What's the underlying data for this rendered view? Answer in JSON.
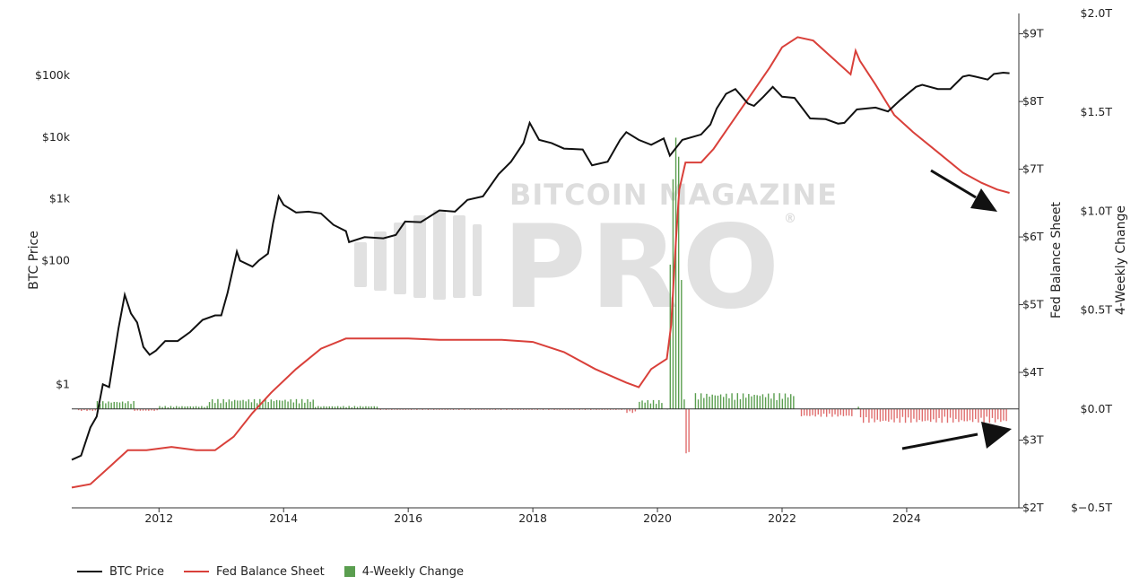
{
  "watermark": {
    "top": "BITCOIN MAGAZINE",
    "main": "PRO",
    "reg": "®"
  },
  "colors": {
    "btc": "#111111",
    "fed": "#d9403a",
    "pos": "#5a9e4f",
    "neg": "#e06e6e",
    "axis": "#333333"
  },
  "axes": {
    "left_title": "BTC Price",
    "right_title_fed": "Fed Balance Sheet",
    "right_title_change": "4-Weekly Change",
    "left_ticks": [
      {
        "label": "$1",
        "value": 1
      },
      {
        "label": "$100",
        "value": 100
      },
      {
        "label": "$1k",
        "value": 1000
      },
      {
        "label": "$10k",
        "value": 10000
      },
      {
        "label": "$100k",
        "value": 100000
      }
    ],
    "fed_ticks": [
      "$2T",
      "$3T",
      "$4T",
      "$5T",
      "$6T",
      "$7T",
      "$8T",
      "$9T"
    ],
    "change_ticks": [
      "$−0.5T",
      "$0.0T",
      "$0.5T",
      "$1.0T",
      "$1.5T",
      "$2.0T"
    ],
    "x_ticks": [
      "2012",
      "2014",
      "2016",
      "2018",
      "2020",
      "2022",
      "2024"
    ]
  },
  "legend": [
    {
      "label": "BTC Price",
      "kind": "line",
      "color": "#111111"
    },
    {
      "label": "Fed Balance Sheet",
      "kind": "line",
      "color": "#d9403a"
    },
    {
      "label": "4-Weekly Change",
      "kind": "box",
      "color": "#5a9e4f"
    }
  ],
  "chart_data": {
    "type": "line",
    "x_range": [
      2010.6,
      2025.8
    ],
    "x_scale": "date (years)",
    "series": [
      {
        "name": "BTC Price",
        "axis": "left",
        "scale": "log",
        "points": [
          [
            2010.6,
            0.06
          ],
          [
            2010.75,
            0.07
          ],
          [
            2010.9,
            0.2
          ],
          [
            2011.0,
            0.3
          ],
          [
            2011.1,
            1.0
          ],
          [
            2011.2,
            0.9
          ],
          [
            2011.35,
            8
          ],
          [
            2011.45,
            28
          ],
          [
            2011.55,
            14
          ],
          [
            2011.65,
            10
          ],
          [
            2011.75,
            4
          ],
          [
            2011.85,
            3
          ],
          [
            2011.95,
            3.5
          ],
          [
            2012.1,
            5
          ],
          [
            2012.3,
            5
          ],
          [
            2012.5,
            7
          ],
          [
            2012.7,
            11
          ],
          [
            2012.9,
            13
          ],
          [
            2013.0,
            13
          ],
          [
            2013.1,
            30
          ],
          [
            2013.25,
            140
          ],
          [
            2013.3,
            100
          ],
          [
            2013.5,
            80
          ],
          [
            2013.6,
            100
          ],
          [
            2013.75,
            130
          ],
          [
            2013.83,
            400
          ],
          [
            2013.92,
            1100
          ],
          [
            2014.0,
            800
          ],
          [
            2014.2,
            600
          ],
          [
            2014.4,
            620
          ],
          [
            2014.6,
            580
          ],
          [
            2014.8,
            380
          ],
          [
            2015.0,
            300
          ],
          [
            2015.05,
            200
          ],
          [
            2015.3,
            240
          ],
          [
            2015.6,
            230
          ],
          [
            2015.8,
            260
          ],
          [
            2015.95,
            430
          ],
          [
            2016.2,
            420
          ],
          [
            2016.5,
            650
          ],
          [
            2016.75,
            620
          ],
          [
            2016.95,
            960
          ],
          [
            2017.2,
            1100
          ],
          [
            2017.45,
            2500
          ],
          [
            2017.65,
            4000
          ],
          [
            2017.85,
            8000
          ],
          [
            2017.95,
            17000
          ],
          [
            2018.1,
            9000
          ],
          [
            2018.3,
            8000
          ],
          [
            2018.5,
            6500
          ],
          [
            2018.8,
            6300
          ],
          [
            2018.95,
            3500
          ],
          [
            2019.2,
            4000
          ],
          [
            2019.4,
            9000
          ],
          [
            2019.5,
            12000
          ],
          [
            2019.7,
            9000
          ],
          [
            2019.9,
            7500
          ],
          [
            2020.1,
            9500
          ],
          [
            2020.2,
            5000
          ],
          [
            2020.4,
            9000
          ],
          [
            2020.7,
            11000
          ],
          [
            2020.85,
            16000
          ],
          [
            2020.95,
            29000
          ],
          [
            2021.1,
            50000
          ],
          [
            2021.25,
            60000
          ],
          [
            2021.45,
            35000
          ],
          [
            2021.55,
            32000
          ],
          [
            2021.7,
            45000
          ],
          [
            2021.85,
            65000
          ],
          [
            2022.0,
            45000
          ],
          [
            2022.2,
            43000
          ],
          [
            2022.45,
            20000
          ],
          [
            2022.7,
            19500
          ],
          [
            2022.9,
            16500
          ],
          [
            2023.0,
            17000
          ],
          [
            2023.2,
            28000
          ],
          [
            2023.5,
            30000
          ],
          [
            2023.7,
            26000
          ],
          [
            2023.9,
            40000
          ],
          [
            2024.15,
            65000
          ],
          [
            2024.25,
            70000
          ],
          [
            2024.5,
            60000
          ],
          [
            2024.7,
            60000
          ],
          [
            2024.9,
            95000
          ],
          [
            2025.0,
            100000
          ],
          [
            2025.1,
            95000
          ],
          [
            2025.3,
            85000
          ],
          [
            2025.4,
            105000
          ],
          [
            2025.55,
            110000
          ],
          [
            2025.65,
            108000
          ]
        ]
      },
      {
        "name": "Fed Balance Sheet",
        "axis": "right",
        "unit": "trillion USD",
        "points": [
          [
            2010.6,
            2.3
          ],
          [
            2010.9,
            2.35
          ],
          [
            2011.2,
            2.6
          ],
          [
            2011.5,
            2.85
          ],
          [
            2011.8,
            2.85
          ],
          [
            2012.2,
            2.9
          ],
          [
            2012.6,
            2.85
          ],
          [
            2012.9,
            2.85
          ],
          [
            2013.2,
            3.05
          ],
          [
            2013.5,
            3.4
          ],
          [
            2013.8,
            3.7
          ],
          [
            2014.2,
            4.05
          ],
          [
            2014.6,
            4.35
          ],
          [
            2015.0,
            4.5
          ],
          [
            2015.5,
            4.5
          ],
          [
            2016.0,
            4.5
          ],
          [
            2016.5,
            4.48
          ],
          [
            2017.0,
            4.48
          ],
          [
            2017.5,
            4.48
          ],
          [
            2018.0,
            4.45
          ],
          [
            2018.5,
            4.3
          ],
          [
            2019.0,
            4.05
          ],
          [
            2019.5,
            3.85
          ],
          [
            2019.7,
            3.78
          ],
          [
            2019.9,
            4.05
          ],
          [
            2020.15,
            4.2
          ],
          [
            2020.22,
            4.7
          ],
          [
            2020.3,
            6.0
          ],
          [
            2020.35,
            6.7
          ],
          [
            2020.45,
            7.1
          ],
          [
            2020.7,
            7.1
          ],
          [
            2020.9,
            7.3
          ],
          [
            2021.2,
            7.7
          ],
          [
            2021.5,
            8.1
          ],
          [
            2021.8,
            8.5
          ],
          [
            2022.0,
            8.8
          ],
          [
            2022.25,
            8.95
          ],
          [
            2022.5,
            8.9
          ],
          [
            2022.8,
            8.65
          ],
          [
            2023.1,
            8.4
          ],
          [
            2023.18,
            8.75
          ],
          [
            2023.25,
            8.6
          ],
          [
            2023.5,
            8.25
          ],
          [
            2023.8,
            7.8
          ],
          [
            2024.1,
            7.55
          ],
          [
            2024.5,
            7.25
          ],
          [
            2024.9,
            6.95
          ],
          [
            2025.2,
            6.8
          ],
          [
            2025.45,
            6.7
          ],
          [
            2025.65,
            6.65
          ]
        ]
      },
      {
        "name": "4-Weekly Change",
        "axis": "right2",
        "unit": "trillion USD",
        "type": "bar",
        "segments": [
          {
            "x": [
              2010.7,
              2011.0
            ],
            "v": -0.01
          },
          {
            "x": [
              2011.0,
              2011.6
            ],
            "v": 0.04
          },
          {
            "x": [
              2011.6,
              2012.0
            ],
            "v": -0.01
          },
          {
            "x": [
              2012.0,
              2012.8
            ],
            "v": 0.015
          },
          {
            "x": [
              2012.8,
              2014.5
            ],
            "v": 0.05
          },
          {
            "x": [
              2014.5,
              2015.5
            ],
            "v": 0.015
          },
          {
            "x": [
              2015.5,
              2019.5
            ],
            "v": -0.005
          },
          {
            "x": [
              2019.5,
              2019.65
            ],
            "v": -0.02
          },
          {
            "x": [
              2019.7,
              2020.1
            ],
            "v": 0.045
          },
          {
            "x": [
              2020.15,
              2020.45
            ],
            "v": 1.6
          },
          {
            "x": [
              2020.45,
              2020.5
            ],
            "v": -0.25
          },
          {
            "x": [
              2020.6,
              2022.2
            ],
            "v": 0.08
          },
          {
            "x": [
              2022.3,
              2023.15
            ],
            "v": -0.04
          },
          {
            "x": [
              2023.17,
              2023.22
            ],
            "v": 0.36
          },
          {
            "x": [
              2023.25,
              2025.6
            ],
            "v": -0.07
          }
        ]
      }
    ],
    "y_left": {
      "label": "BTC Price",
      "scale": "log",
      "range": [
        0.01,
        1000000
      ]
    },
    "y_right": {
      "label": "Fed Balance Sheet",
      "range": [
        2,
        9.3
      ]
    },
    "y_right2": {
      "label": "4-Weekly Change",
      "range": [
        -0.5,
        2.0
      ]
    },
    "annotations": [
      "arrow pointing down-right to the Fed Balance Sheet line",
      "arrow pointing up-right to the 4-Weekly Change bars"
    ],
    "legend_position": "bottom-left",
    "grid": false
  }
}
